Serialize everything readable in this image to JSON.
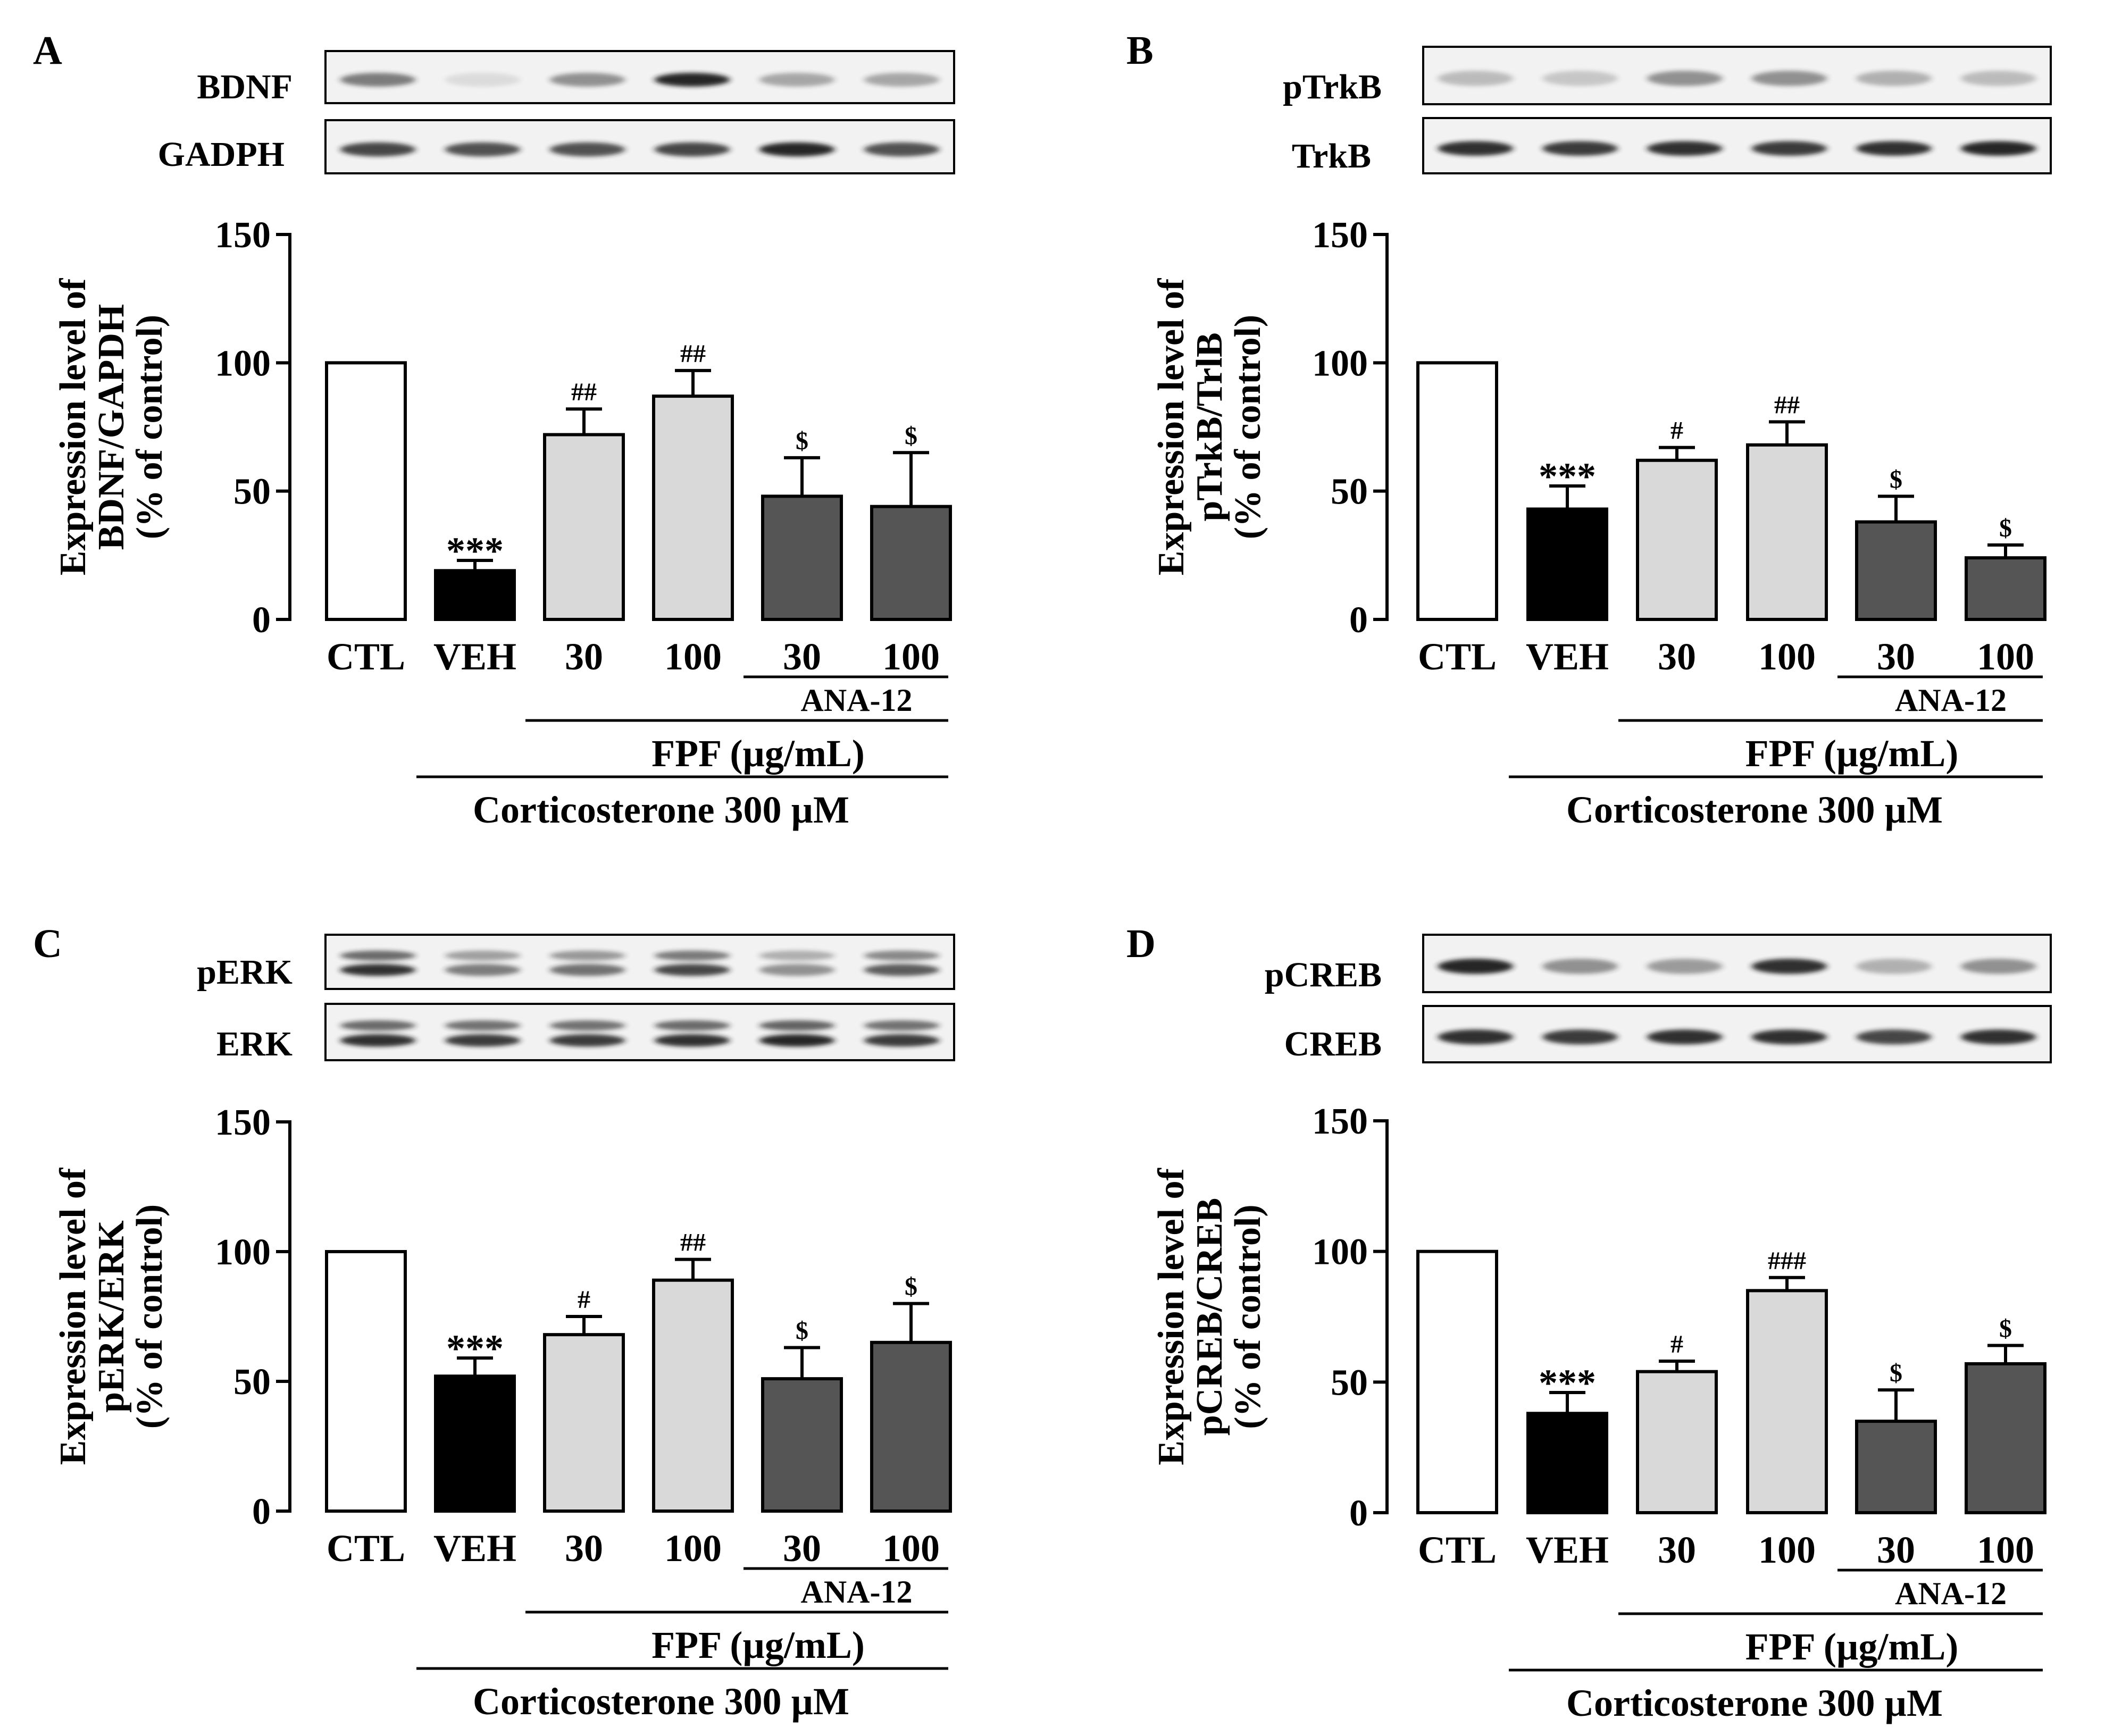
{
  "colors": {
    "ctl": "#ffffff",
    "veh": "#000000",
    "fpf": "#d9d9d9",
    "ana12": "#555555",
    "blot_bg": "#f2f2f2",
    "band": "#1a1a1a"
  },
  "shared": {
    "categories": [
      "CTL",
      "VEH",
      "30",
      "100",
      "30",
      "100"
    ],
    "groups": [
      "ctl",
      "veh",
      "fpf",
      "fpf",
      "ana12",
      "ana12"
    ],
    "ana12_label": "ANA-12",
    "fpf_label": "FPF (µg/mL)",
    "corticosterone_label": "Corticosterone 300 µM",
    "yticks": [
      "0",
      "50",
      "100",
      "150"
    ],
    "ylim": [
      0,
      150
    ]
  },
  "chart_data": [
    {
      "type": "bar",
      "panel": "A",
      "blot_labels": [
        "BDNF",
        "GADPH"
      ],
      "blot_intensity": [
        [
          0.55,
          0.1,
          0.45,
          0.95,
          0.35,
          0.35
        ],
        [
          0.8,
          0.75,
          0.75,
          0.8,
          0.95,
          0.75
        ]
      ],
      "blot_double": [
        false,
        false
      ],
      "ylabel": [
        "Expression level of",
        "BDNF/GAPDH",
        "(% of control)"
      ],
      "ylim": [
        0,
        150
      ],
      "values": [
        100,
        19,
        72,
        87,
        48,
        44
      ],
      "errors": [
        0,
        4,
        10,
        10,
        15,
        21
      ],
      "significance": [
        "",
        "***",
        "##",
        "##",
        "$",
        "$"
      ]
    },
    {
      "type": "bar",
      "panel": "B",
      "blot_labels": [
        "pTrkB",
        "TrkB"
      ],
      "blot_intensity": [
        [
          0.25,
          0.2,
          0.45,
          0.45,
          0.3,
          0.25
        ],
        [
          0.9,
          0.85,
          0.9,
          0.85,
          0.9,
          0.95
        ]
      ],
      "blot_double": [
        false,
        false
      ],
      "ylabel": [
        "Expression level of",
        "pTrkB/TrlB",
        "(% of control)"
      ],
      "ylim": [
        0,
        150
      ],
      "values": [
        100,
        43,
        62,
        68,
        38,
        24
      ],
      "errors": [
        0,
        9,
        5,
        9,
        10,
        5
      ],
      "significance": [
        "",
        "***",
        "#",
        "##",
        "$",
        "$"
      ]
    },
    {
      "type": "bar",
      "panel": "C",
      "blot_labels": [
        "pERK",
        "ERK"
      ],
      "blot_intensity": [
        [
          0.9,
          0.55,
          0.6,
          0.8,
          0.45,
          0.7
        ],
        [
          0.9,
          0.85,
          0.85,
          0.9,
          0.95,
          0.85
        ]
      ],
      "blot_double": [
        true,
        true
      ],
      "ylabel": [
        "Expression level of",
        "pERK/ERK",
        "(% of control)"
      ],
      "ylim": [
        0,
        150
      ],
      "values": [
        100,
        52,
        68,
        89,
        51,
        65
      ],
      "errors": [
        0,
        7,
        7,
        8,
        12,
        15
      ],
      "significance": [
        "",
        "***",
        "#",
        "##",
        "$",
        "$"
      ]
    },
    {
      "type": "bar",
      "panel": "D",
      "blot_labels": [
        "pCREB",
        "CREB"
      ],
      "blot_intensity": [
        [
          0.95,
          0.45,
          0.4,
          0.9,
          0.3,
          0.45
        ],
        [
          0.9,
          0.85,
          0.9,
          0.9,
          0.8,
          0.9
        ]
      ],
      "blot_double": [
        false,
        false
      ],
      "ylabel": [
        "Expression level of",
        "pCREB/CREB",
        "(% of control)"
      ],
      "ylim": [
        0,
        150
      ],
      "values": [
        100,
        38,
        54,
        85,
        35,
        57
      ],
      "errors": [
        0,
        8,
        4,
        5,
        12,
        7
      ],
      "significance": [
        "",
        "***",
        "#",
        "###",
        "$",
        "$"
      ]
    }
  ]
}
